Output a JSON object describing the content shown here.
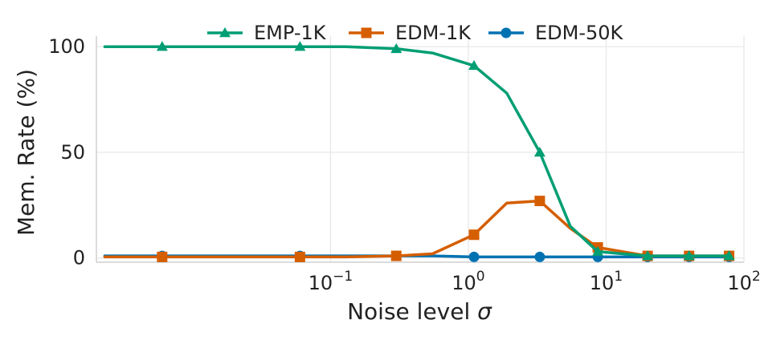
{
  "chart_data": {
    "type": "line",
    "xscale": "log",
    "xlabel_prefix": "Noise level ",
    "xlabel_symbol": "σ",
    "ylabel": "Mem. Rate (%)",
    "xlim": [
      0.002,
      100
    ],
    "ylim": [
      -2,
      105
    ],
    "x_ticks": [
      {
        "value": 0.1,
        "base": "10",
        "exp": "−1"
      },
      {
        "value": 1,
        "base": "10",
        "exp": "0"
      },
      {
        "value": 10,
        "base": "10",
        "exp": "1"
      },
      {
        "value": 100,
        "base": "10",
        "exp": "2"
      }
    ],
    "y_ticks": [
      0,
      50,
      100
    ],
    "grid": true,
    "legend_position": "top",
    "series": [
      {
        "name": "EMP-1K",
        "color": "#009e73",
        "marker": "triangle",
        "x": [
          0.0023,
          0.006,
          0.013,
          0.03,
          0.06,
          0.13,
          0.3,
          0.55,
          1.1,
          1.9,
          3.3,
          5.5,
          8.7,
          20,
          40,
          78
        ],
        "y": [
          100,
          100,
          100,
          100,
          100,
          100,
          99,
          97,
          91,
          78,
          50,
          15,
          3,
          1,
          1,
          1
        ],
        "markers_at": [
          1,
          4,
          6,
          8,
          10,
          12,
          13,
          14,
          15
        ]
      },
      {
        "name": "EDM-1K",
        "color": "#d55e00",
        "marker": "square",
        "x": [
          0.0023,
          0.006,
          0.013,
          0.03,
          0.06,
          0.13,
          0.3,
          0.55,
          1.1,
          1.9,
          3.3,
          5.5,
          8.7,
          20,
          40,
          78
        ],
        "y": [
          0.5,
          0.5,
          0.5,
          0.5,
          0.5,
          0.5,
          1,
          2,
          11,
          26,
          27,
          14,
          5,
          1,
          1,
          1
        ],
        "markers_at": [
          1,
          4,
          6,
          8,
          10,
          12,
          13,
          14,
          15
        ]
      },
      {
        "name": "EDM-50K",
        "color": "#0072b2",
        "marker": "circle",
        "x": [
          0.0023,
          0.006,
          0.013,
          0.03,
          0.06,
          0.13,
          0.3,
          0.55,
          1.1,
          1.9,
          3.3,
          5.5,
          8.7,
          20,
          40,
          78
        ],
        "y": [
          1,
          1,
          1,
          1,
          1,
          1,
          1,
          1,
          0.5,
          0.5,
          0.5,
          0.5,
          0.5,
          0.5,
          0.5,
          0.5
        ],
        "markers_at": [
          1,
          4,
          6,
          8,
          10,
          12,
          13,
          14,
          15
        ]
      }
    ]
  }
}
